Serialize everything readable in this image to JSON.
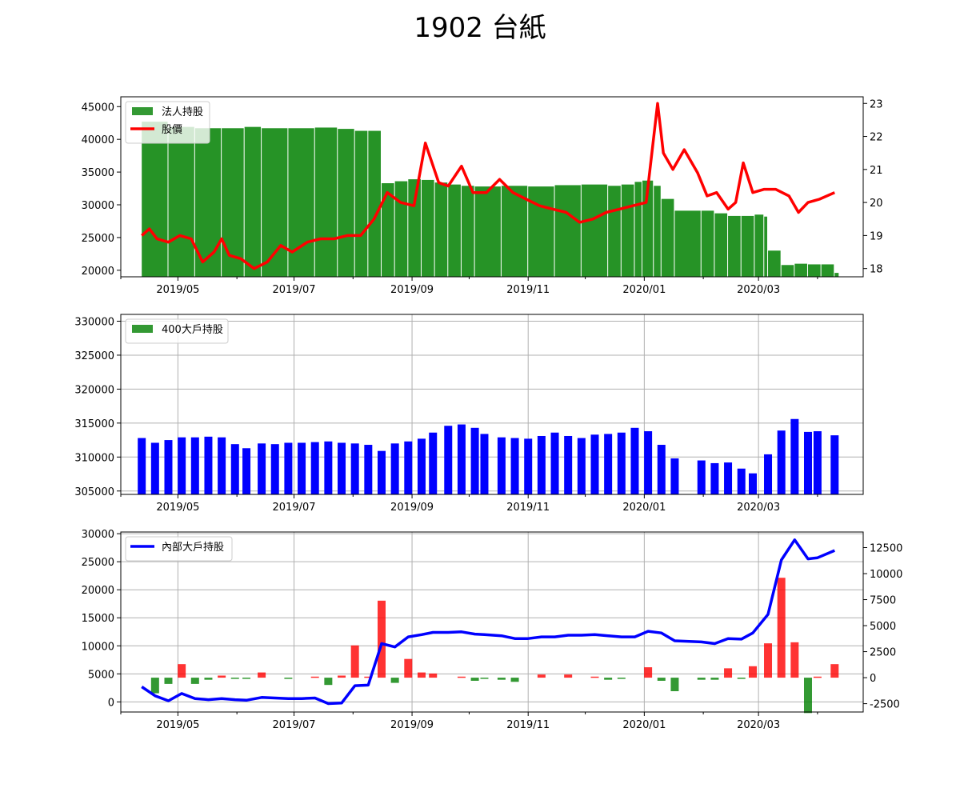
{
  "title": "1902 台紙",
  "colors": {
    "green": "#008000",
    "red": "#ff0000",
    "blue": "#0000ff",
    "grid": "#b0b0b0"
  },
  "x_ticks": [
    "2019/05",
    "2019/07",
    "2019/09",
    "2019/11",
    "2020/01",
    "2020/03"
  ],
  "chart_data": [
    {
      "type": "bar+line",
      "legend": [
        "法人持股",
        "股價"
      ],
      "legend_position": "top-left",
      "grid": false,
      "left_axis": {
        "ticks": [
          20000,
          25000,
          30000,
          35000,
          40000,
          45000
        ],
        "ylim": [
          19000,
          46500
        ]
      },
      "right_axis": {
        "ticks": [
          18,
          19,
          20,
          21,
          22,
          23
        ],
        "ylim": [
          17.75,
          23.2
        ]
      },
      "x_range": [
        "2019-04-01",
        "2020-04-25"
      ],
      "institutional_holdings": [
        [
          "2019-04-12",
          42700
        ],
        [
          "2019-04-26",
          41900
        ],
        [
          "2019-05-10",
          41700
        ],
        [
          "2019-05-24",
          41700
        ],
        [
          "2019-06-05",
          41900
        ],
        [
          "2019-06-14",
          41700
        ],
        [
          "2019-06-28",
          41700
        ],
        [
          "2019-07-12",
          41800
        ],
        [
          "2019-07-24",
          41600
        ],
        [
          "2019-08-02",
          41300
        ],
        [
          "2019-08-09",
          41300
        ],
        [
          "2019-08-16",
          33300
        ],
        [
          "2019-08-23",
          33600
        ],
        [
          "2019-08-30",
          33900
        ],
        [
          "2019-09-06",
          33800
        ],
        [
          "2019-09-13",
          33400
        ],
        [
          "2019-09-20",
          33100
        ],
        [
          "2019-09-27",
          32900
        ],
        [
          "2019-10-04",
          32800
        ],
        [
          "2019-10-18",
          32900
        ],
        [
          "2019-11-01",
          32800
        ],
        [
          "2019-11-15",
          33000
        ],
        [
          "2019-11-29",
          33100
        ],
        [
          "2019-12-13",
          32900
        ],
        [
          "2019-12-20",
          33100
        ],
        [
          "2019-12-27",
          33500
        ],
        [
          "2019-12-31",
          33700
        ],
        [
          "2020-01-06",
          32900
        ],
        [
          "2020-01-10",
          30900
        ],
        [
          "2020-01-17",
          29100
        ],
        [
          "2020-01-31",
          29100
        ],
        [
          "2020-02-07",
          28700
        ],
        [
          "2020-02-14",
          28300
        ],
        [
          "2020-02-21",
          28300
        ],
        [
          "2020-02-28",
          28500
        ],
        [
          "2020-03-04",
          28200
        ],
        [
          "2020-03-06",
          23000
        ],
        [
          "2020-03-13",
          20800
        ],
        [
          "2020-03-20",
          21000
        ],
        [
          "2020-03-27",
          20900
        ],
        [
          "2020-04-03",
          20900
        ],
        [
          "2020-04-10",
          19600
        ]
      ],
      "price": [
        [
          "2019-04-12",
          19.0
        ],
        [
          "2019-04-16",
          19.2
        ],
        [
          "2019-04-20",
          18.9
        ],
        [
          "2019-04-26",
          18.8
        ],
        [
          "2019-05-02",
          19.0
        ],
        [
          "2019-05-08",
          18.9
        ],
        [
          "2019-05-14",
          18.2
        ],
        [
          "2019-05-20",
          18.5
        ],
        [
          "2019-05-24",
          18.9
        ],
        [
          "2019-05-28",
          18.4
        ],
        [
          "2019-06-03",
          18.3
        ],
        [
          "2019-06-10",
          18.0
        ],
        [
          "2019-06-17",
          18.2
        ],
        [
          "2019-06-24",
          18.7
        ],
        [
          "2019-06-30",
          18.5
        ],
        [
          "2019-07-08",
          18.8
        ],
        [
          "2019-07-15",
          18.9
        ],
        [
          "2019-07-22",
          18.9
        ],
        [
          "2019-07-29",
          19.0
        ],
        [
          "2019-08-05",
          19.0
        ],
        [
          "2019-08-12",
          19.5
        ],
        [
          "2019-08-19",
          20.3
        ],
        [
          "2019-08-26",
          20.0
        ],
        [
          "2019-09-02",
          19.9
        ],
        [
          "2019-09-08",
          21.8
        ],
        [
          "2019-09-15",
          20.6
        ],
        [
          "2019-09-20",
          20.5
        ],
        [
          "2019-09-27",
          21.1
        ],
        [
          "2019-10-03",
          20.3
        ],
        [
          "2019-10-10",
          20.3
        ],
        [
          "2019-10-17",
          20.7
        ],
        [
          "2019-10-24",
          20.3
        ],
        [
          "2019-10-31",
          20.1
        ],
        [
          "2019-11-07",
          19.9
        ],
        [
          "2019-11-14",
          19.8
        ],
        [
          "2019-11-21",
          19.7
        ],
        [
          "2019-11-28",
          19.4
        ],
        [
          "2019-12-05",
          19.5
        ],
        [
          "2019-12-12",
          19.7
        ],
        [
          "2019-12-19",
          19.8
        ],
        [
          "2019-12-26",
          19.9
        ],
        [
          "2020-01-02",
          20.0
        ],
        [
          "2020-01-08",
          23.0
        ],
        [
          "2020-01-11",
          21.5
        ],
        [
          "2020-01-16",
          21.0
        ],
        [
          "2020-01-22",
          21.6
        ],
        [
          "2020-01-29",
          20.9
        ],
        [
          "2020-02-03",
          20.2
        ],
        [
          "2020-02-08",
          20.3
        ],
        [
          "2020-02-14",
          19.8
        ],
        [
          "2020-02-18",
          20.0
        ],
        [
          "2020-02-22",
          21.2
        ],
        [
          "2020-02-27",
          20.3
        ],
        [
          "2020-03-04",
          20.4
        ],
        [
          "2020-03-10",
          20.4
        ],
        [
          "2020-03-17",
          20.2
        ],
        [
          "2020-03-22",
          19.7
        ],
        [
          "2020-03-27",
          20.0
        ],
        [
          "2020-04-02",
          20.1
        ],
        [
          "2020-04-10",
          20.3
        ]
      ]
    },
    {
      "type": "bar",
      "legend": [
        "400大戶持股"
      ],
      "legend_position": "top-left",
      "grid": true,
      "left_axis": {
        "ticks": [
          305000,
          310000,
          315000,
          320000,
          325000,
          330000
        ],
        "ylim": [
          304500,
          331000
        ]
      },
      "x_range": [
        "2019-04-01",
        "2020-04-25"
      ],
      "holdings_400": [
        [
          "2019-04-12",
          312800
        ],
        [
          "2019-04-19",
          312100
        ],
        [
          "2019-04-26",
          312500
        ],
        [
          "2019-05-03",
          312900
        ],
        [
          "2019-05-10",
          312900
        ],
        [
          "2019-05-17",
          313000
        ],
        [
          "2019-05-24",
          312900
        ],
        [
          "2019-05-31",
          311900
        ],
        [
          "2019-06-06",
          311300
        ],
        [
          "2019-06-14",
          312000
        ],
        [
          "2019-06-21",
          311900
        ],
        [
          "2019-06-28",
          312100
        ],
        [
          "2019-07-05",
          312100
        ],
        [
          "2019-07-12",
          312200
        ],
        [
          "2019-07-19",
          312300
        ],
        [
          "2019-07-26",
          312100
        ],
        [
          "2019-08-02",
          312000
        ],
        [
          "2019-08-09",
          311800
        ],
        [
          "2019-08-16",
          310900
        ],
        [
          "2019-08-23",
          312000
        ],
        [
          "2019-08-30",
          312300
        ],
        [
          "2019-09-06",
          312700
        ],
        [
          "2019-09-12",
          313600
        ],
        [
          "2019-09-20",
          314600
        ],
        [
          "2019-09-27",
          314800
        ],
        [
          "2019-10-04",
          314300
        ],
        [
          "2019-10-09",
          313400
        ],
        [
          "2019-10-18",
          312900
        ],
        [
          "2019-10-25",
          312800
        ],
        [
          "2019-11-01",
          312700
        ],
        [
          "2019-11-08",
          313100
        ],
        [
          "2019-11-15",
          313600
        ],
        [
          "2019-11-22",
          313100
        ],
        [
          "2019-11-29",
          312800
        ],
        [
          "2019-12-06",
          313300
        ],
        [
          "2019-12-13",
          313400
        ],
        [
          "2019-12-20",
          313600
        ],
        [
          "2019-12-27",
          314300
        ],
        [
          "2020-01-03",
          313800
        ],
        [
          "2020-01-10",
          311800
        ],
        [
          "2020-01-17",
          309800
        ],
        [
          "2020-01-31",
          309500
        ],
        [
          "2020-02-07",
          309100
        ],
        [
          "2020-02-14",
          309200
        ],
        [
          "2020-02-21",
          308300
        ],
        [
          "2020-02-27",
          307600
        ],
        [
          "2020-03-06",
          310400
        ],
        [
          "2020-03-13",
          313900
        ],
        [
          "2020-03-20",
          315600
        ],
        [
          "2020-03-27",
          313700
        ],
        [
          "2020-04-01",
          313800
        ],
        [
          "2020-04-10",
          313200
        ]
      ]
    },
    {
      "type": "bar+line",
      "legend": [
        "內部大戶持股"
      ],
      "legend_position": "top-left",
      "grid": true,
      "left_axis": {
        "ticks": [
          0,
          5000,
          10000,
          15000,
          20000,
          25000,
          30000
        ],
        "ylim": [
          -1800,
          30300
        ]
      },
      "right_axis": {
        "ticks": [
          -2500,
          0,
          2500,
          5000,
          7500,
          10000,
          12500
        ],
        "ylim": [
          -3300,
          14000
        ]
      },
      "x_range": [
        "2019-04-01",
        "2020-04-25"
      ],
      "insider_holdings": [
        [
          "2019-04-12",
          2700
        ],
        [
          "2019-04-19",
          1100
        ],
        [
          "2019-04-26",
          200
        ],
        [
          "2019-05-03",
          1500
        ],
        [
          "2019-05-10",
          600
        ],
        [
          "2019-05-17",
          400
        ],
        [
          "2019-05-24",
          600
        ],
        [
          "2019-05-31",
          400
        ],
        [
          "2019-06-06",
          300
        ],
        [
          "2019-06-14",
          800
        ],
        [
          "2019-06-21",
          700
        ],
        [
          "2019-06-28",
          600
        ],
        [
          "2019-07-05",
          600
        ],
        [
          "2019-07-12",
          700
        ],
        [
          "2019-07-19",
          -300
        ],
        [
          "2019-07-26",
          -200
        ],
        [
          "2019-08-02",
          2900
        ],
        [
          "2019-08-09",
          3000
        ],
        [
          "2019-08-16",
          10400
        ],
        [
          "2019-08-23",
          9800
        ],
        [
          "2019-08-30",
          11600
        ],
        [
          "2019-09-06",
          12000
        ],
        [
          "2019-09-12",
          12400
        ],
        [
          "2019-09-20",
          12400
        ],
        [
          "2019-09-27",
          12500
        ],
        [
          "2019-10-04",
          12100
        ],
        [
          "2019-10-09",
          12000
        ],
        [
          "2019-10-18",
          11800
        ],
        [
          "2019-10-25",
          11300
        ],
        [
          "2019-11-01",
          11300
        ],
        [
          "2019-11-08",
          11600
        ],
        [
          "2019-11-15",
          11600
        ],
        [
          "2019-11-22",
          11900
        ],
        [
          "2019-11-29",
          11900
        ],
        [
          "2019-12-06",
          12000
        ],
        [
          "2019-12-13",
          11800
        ],
        [
          "2019-12-20",
          11600
        ],
        [
          "2019-12-27",
          11600
        ],
        [
          "2020-01-03",
          12600
        ],
        [
          "2020-01-10",
          12300
        ],
        [
          "2020-01-17",
          10900
        ],
        [
          "2020-01-31",
          10700
        ],
        [
          "2020-02-07",
          10400
        ],
        [
          "2020-02-14",
          11300
        ],
        [
          "2020-02-21",
          11200
        ],
        [
          "2020-02-27",
          12300
        ],
        [
          "2020-03-06",
          15600
        ],
        [
          "2020-03-13",
          25300
        ],
        [
          "2020-03-20",
          28900
        ],
        [
          "2020-03-27",
          25500
        ],
        [
          "2020-04-01",
          25700
        ],
        [
          "2020-04-10",
          27000
        ]
      ],
      "insider_change": [
        [
          "2019-04-19",
          -1500
        ],
        [
          "2019-04-26",
          -600
        ],
        [
          "2019-05-03",
          1300
        ],
        [
          "2019-05-10",
          -600
        ],
        [
          "2019-05-17",
          -200
        ],
        [
          "2019-05-24",
          200
        ],
        [
          "2019-05-31",
          -100
        ],
        [
          "2019-06-06",
          -100
        ],
        [
          "2019-06-14",
          500
        ],
        [
          "2019-06-21",
          0
        ],
        [
          "2019-06-28",
          -100
        ],
        [
          "2019-07-05",
          0
        ],
        [
          "2019-07-12",
          100
        ],
        [
          "2019-07-19",
          -700
        ],
        [
          "2019-07-26",
          200
        ],
        [
          "2019-08-02",
          3100
        ],
        [
          "2019-08-09",
          100
        ],
        [
          "2019-08-16",
          7400
        ],
        [
          "2019-08-23",
          -500
        ],
        [
          "2019-08-30",
          1800
        ],
        [
          "2019-09-06",
          500
        ],
        [
          "2019-09-12",
          400
        ],
        [
          "2019-09-20",
          0
        ],
        [
          "2019-09-27",
          100
        ],
        [
          "2019-10-04",
          -300
        ],
        [
          "2019-10-09",
          -100
        ],
        [
          "2019-10-18",
          -200
        ],
        [
          "2019-10-25",
          -400
        ],
        [
          "2019-11-01",
          0
        ],
        [
          "2019-11-08",
          300
        ],
        [
          "2019-11-15",
          0
        ],
        [
          "2019-11-22",
          300
        ],
        [
          "2019-11-29",
          0
        ],
        [
          "2019-12-06",
          100
        ],
        [
          "2019-12-13",
          -200
        ],
        [
          "2019-12-20",
          -100
        ],
        [
          "2019-12-27",
          0
        ],
        [
          "2020-01-03",
          1000
        ],
        [
          "2020-01-10",
          -300
        ],
        [
          "2020-01-17",
          -1300
        ],
        [
          "2020-01-31",
          -200
        ],
        [
          "2020-02-07",
          -200
        ],
        [
          "2020-02-14",
          900
        ],
        [
          "2020-02-21",
          -100
        ],
        [
          "2020-02-27",
          1100
        ],
        [
          "2020-03-06",
          3300
        ],
        [
          "2020-03-13",
          9600
        ],
        [
          "2020-03-20",
          3400
        ],
        [
          "2020-03-27",
          -3400
        ],
        [
          "2020-04-01",
          100
        ],
        [
          "2020-04-10",
          1300
        ]
      ]
    }
  ]
}
